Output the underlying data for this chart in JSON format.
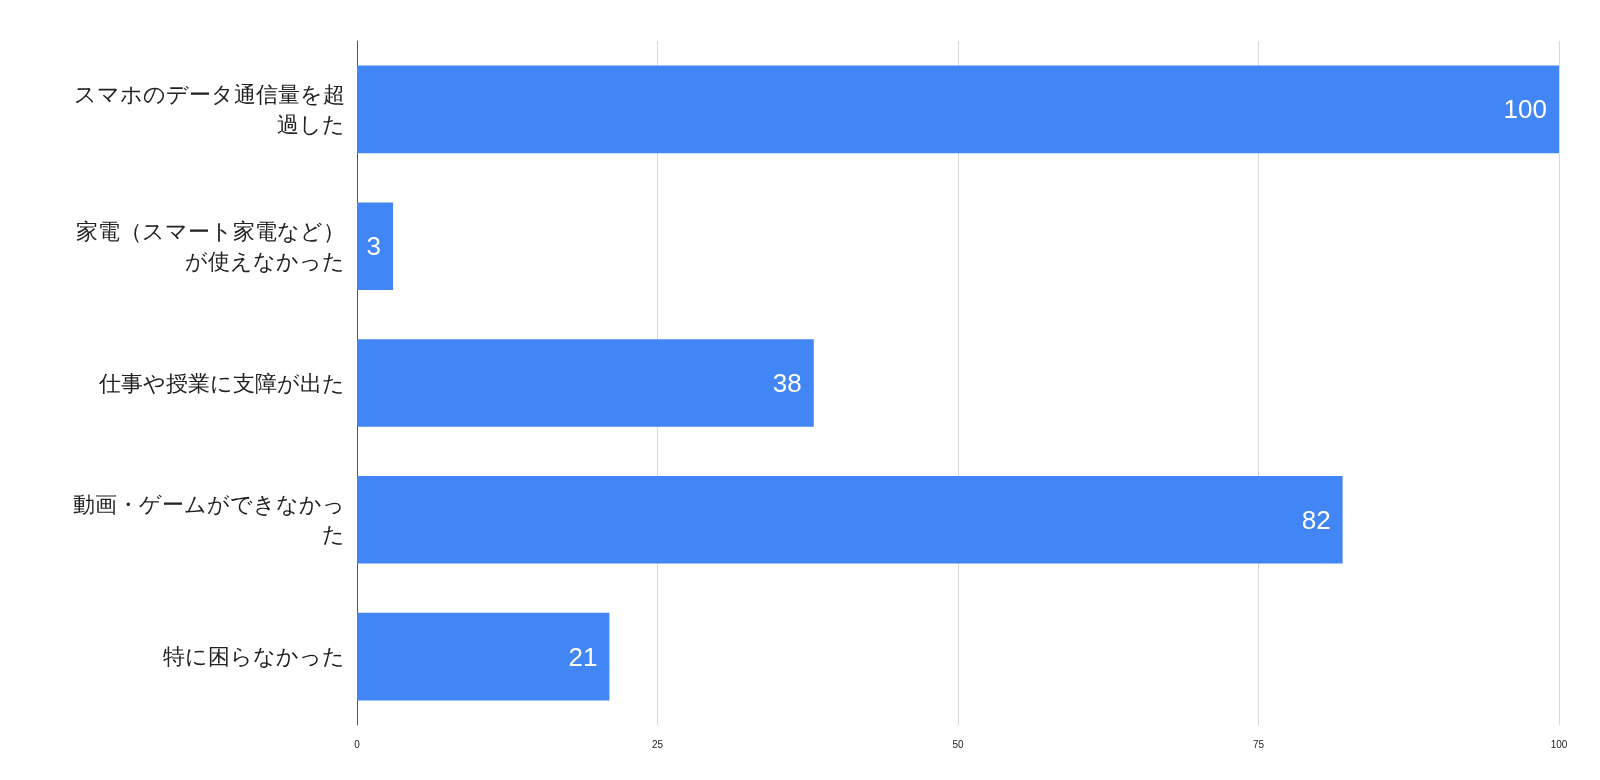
{
  "chart_data": {
    "type": "bar",
    "orientation": "horizontal",
    "categories": [
      "スマホのデータ通信量を超過した",
      "家電（スマート家電など）が使えなかった",
      "仕事や授業に支障が出た",
      "動画・ゲームができなかった",
      "特に困らなかった"
    ],
    "values": [
      100,
      3,
      38,
      82,
      21
    ],
    "color": "#4285f4",
    "data_labels": true,
    "xlim": [
      0,
      100
    ],
    "xticks": [
      0,
      25,
      50,
      75,
      100
    ],
    "grid": "x"
  }
}
